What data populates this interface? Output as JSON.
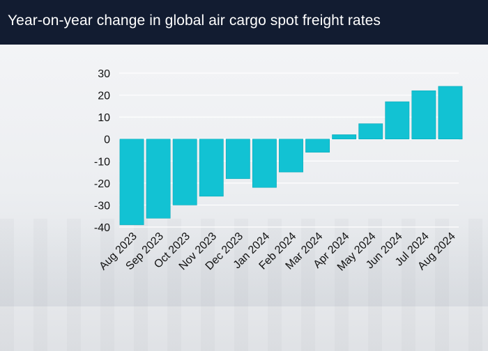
{
  "header": {
    "title": "Year-on-year change in global air cargo spot freight rates"
  },
  "colors": {
    "header_bg": "#121c31",
    "bar": "#12c2d3",
    "bar_edge": "#0aa9b9",
    "grid": "#ffffff",
    "zero_line": "#ffffff"
  },
  "chart_data": {
    "type": "bar",
    "title": "Year-on-year change in global air cargo spot freight rates",
    "xlabel": "",
    "ylabel": "",
    "categories": [
      "Aug 2023",
      "Sep 2023",
      "Oct 2023",
      "Nov 2023",
      "Dec 2023",
      "Jan 2024",
      "Feb 2024",
      "Mar 2024",
      "Apr 2024",
      "May 2024",
      "Jun 2024",
      "Jul 2024",
      "Aug 2024"
    ],
    "values": [
      -39,
      -36,
      -30,
      -26,
      -18,
      -22,
      -15,
      -6,
      2,
      7,
      17,
      22,
      24
    ],
    "ylim": [
      -40,
      30
    ],
    "yticks": [
      30,
      20,
      10,
      0,
      -10,
      -20,
      -30,
      -40
    ],
    "grid": true,
    "legend": "none"
  }
}
